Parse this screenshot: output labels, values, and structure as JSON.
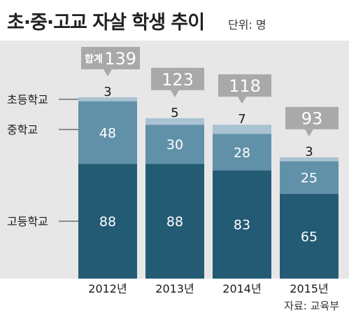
{
  "title": "초·중·고교 자살 학생 추이",
  "unit_label": "단위: 명",
  "source": "자료: 교육부",
  "colors": {
    "elementary": "#a9c3d3",
    "middle": "#6191a8",
    "high": "#245b74",
    "total_box": "#a9a9a9",
    "panel": "#e7e7e7"
  },
  "chart_data": {
    "type": "bar",
    "stacked": true,
    "categories": [
      "2012년",
      "2013년",
      "2014년",
      "2015년"
    ],
    "series": [
      {
        "name": "고등학교",
        "values": [
          88,
          88,
          83,
          65
        ]
      },
      {
        "name": "중학교",
        "values": [
          48,
          30,
          28,
          25
        ]
      },
      {
        "name": "초등학교",
        "values": [
          3,
          5,
          7,
          3
        ]
      }
    ],
    "totals": [
      139,
      123,
      118,
      93
    ],
    "total_prefix": "합계",
    "series_labels": [
      "초등학교",
      "중학교",
      "고등학교"
    ],
    "ylim": [
      0,
      150
    ],
    "grid": false,
    "legend": "left"
  }
}
